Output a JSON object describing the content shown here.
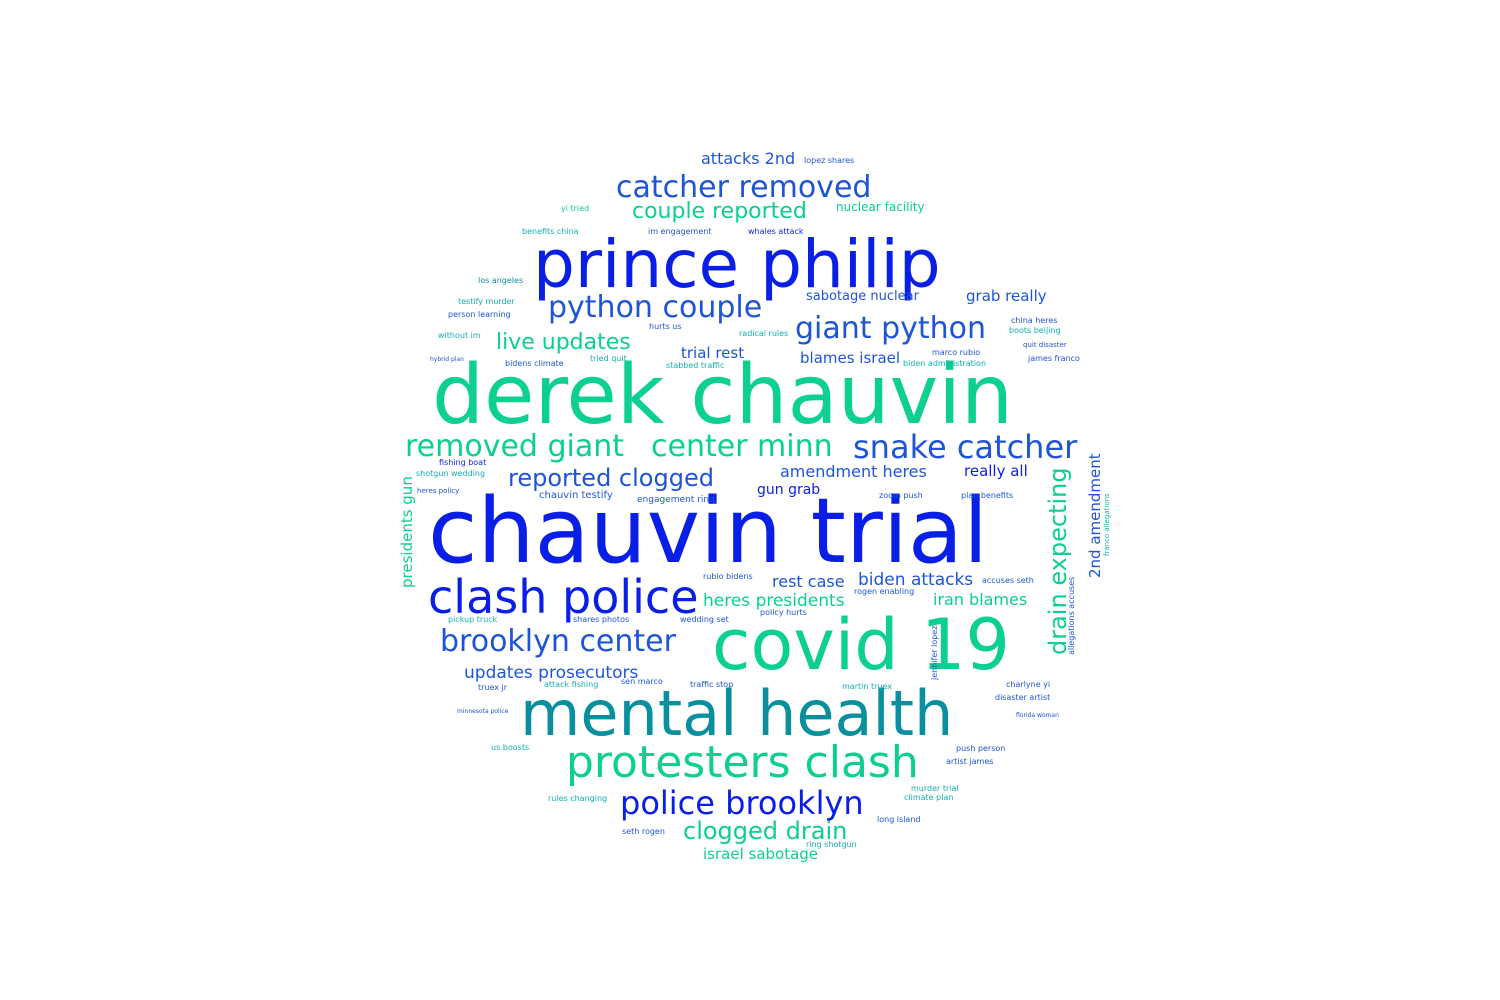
{
  "palette": {
    "blue": "#0a1fe6",
    "green": "#0ccf92",
    "teal": "#0a8f9e",
    "medium_blue": "#1e55d6",
    "cyan": "#11b0b0"
  },
  "words": {
    "derek_chauvin": "derek chauvin",
    "chauvin_trial": "chauvin trial",
    "prince_philip": "prince philip",
    "covid_19": "covid 19",
    "mental_health": "mental health",
    "clash_police": "clash police",
    "protesters_clash": "protesters clash",
    "police_brooklyn": "police brooklyn",
    "catcher_removed": "catcher removed",
    "python_couple": "python couple",
    "giant_python": "giant python",
    "snake_catcher": "snake catcher",
    "removed_giant": "removed giant",
    "center_minn": "center minn",
    "brooklyn_center": "brooklyn center",
    "reported_clogged": "reported clogged",
    "couple_reported": "couple reported",
    "live_updates": "live updates",
    "clogged_drain": "clogged drain",
    "drain_expecting": "drain expecting",
    "updates_prosecutors": "updates prosecutors",
    "amendment_heres": "amendment heres",
    "heres_presidents": "heres presidents",
    "biden_attacks": "biden attacks",
    "rest_case": "rest case",
    "iran_blames": "iran blames",
    "israel_sabotage": "israel sabotage",
    "attacks_2nd": "attacks 2nd",
    "trial_rest": "trial rest",
    "blames_israel": "blames israel",
    "sabotage_nuclear": "sabotage nuclear",
    "grab_really": "grab really",
    "really_all": "really all",
    "nuclear_facility": "nuclear facility",
    "gun_grab": "gun grab",
    "presidents_gun": "presidents gun",
    "second_amendment": "2nd amendment",
    "chauvin_testify": "chauvin testify",
    "engagement_ring": "engagement ring",
    "lopez_shares": "lopez shares",
    "yi_tried": "yi tried",
    "benefits_china": "benefits china",
    "im_engagement": "im engagement",
    "whales_attack": "whales attack",
    "los_angeles": "los angeles",
    "testify_murder": "testify murder",
    "person_learning": "person learning",
    "without_im": "without im",
    "hybrid_plan": "hybrid plan",
    "bidens_climate": "bidens climate",
    "tried_quit": "tried quit",
    "stabbed_traffic": "stabbed traffic",
    "hurts_us": "hurts us",
    "radical_rules": "radical rules",
    "marco_rubio": "marco rubio",
    "biden_administration": "biden administration",
    "james_franco": "james franco",
    "quit_disaster": "quit disaster",
    "china_heres": "china heres",
    "boots_beijing": "boots beijing",
    "fishing_boat": "fishing boat",
    "shotgun_wedding": "shotgun wedding",
    "heres_policy": "heres policy",
    "zoom_push": "zoom push",
    "plan_benefits": "plan benefits",
    "rubio_bidens": "rubio bidens",
    "rogen_enabling": "rogen enabling",
    "accuses_seth": "accuses seth",
    "pickup_truck": "pickup truck",
    "shares_photos": "shares photos",
    "wedding_set": "wedding set",
    "policy_hurts": "policy hurts",
    "truex_jr": "truex jr",
    "attack_fishing": "attack fishing",
    "sen_marco": "sen marco",
    "traffic_stop": "traffic stop",
    "martin_truex": "martin truex",
    "charlyne_yi": "charlyne yi",
    "disaster_artist": "disaster artist",
    "minnesota_police": "minnesota police",
    "us_boosts": "us boosts",
    "push_person": "push person",
    "artist_james": "artist james",
    "rules_changing": "rules changing",
    "murder_trial": "murder trial",
    "climate_plan": "climate plan",
    "seth_rogen": "seth rogen",
    "long_island": "long island",
    "ring_shotgun": "ring shotgun",
    "jennifer_lopez": "jennifer lopez",
    "allegations_accuses": "allegations accuses",
    "franco_allegations": "franco allegations",
    "florida_woman": "florida woman"
  }
}
